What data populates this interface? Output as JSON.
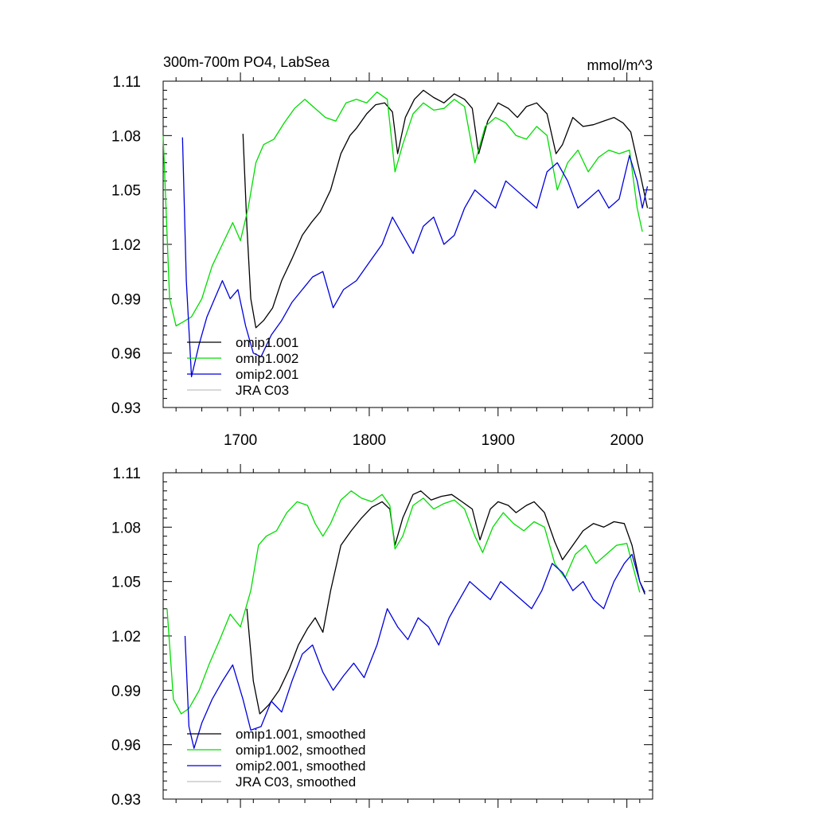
{
  "chart_data": [
    {
      "type": "line",
      "title": "300m-700m PO4, LabSea",
      "units": "mmol/m^3",
      "xlim": [
        1640,
        2020
      ],
      "ylim": [
        0.93,
        1.11
      ],
      "yticks": [
        "0.93",
        "0.96",
        "0.99",
        "1.02",
        "1.05",
        "1.08",
        "1.11"
      ],
      "xticks": [
        "1700",
        "1800",
        "1900",
        "2000"
      ],
      "legend_position": "bottom-left",
      "series": [
        {
          "name": "omip1.001",
          "color": "#000000",
          "x": [
            1702,
            1705,
            1708,
            1712,
            1718,
            1725,
            1732,
            1740,
            1748,
            1755,
            1762,
            1770,
            1778,
            1785,
            1790,
            1798,
            1805,
            1812,
            1818,
            1822,
            1828,
            1835,
            1842,
            1850,
            1858,
            1866,
            1874,
            1880,
            1885,
            1892,
            1900,
            1908,
            1915,
            1922,
            1930,
            1938,
            1945,
            1950,
            1958,
            1966,
            1974,
            1982,
            1990,
            1997,
            2003,
            2010,
            2016
          ],
          "values": [
            1.081,
            1.03,
            0.99,
            0.974,
            0.978,
            0.985,
            1.0,
            1.012,
            1.025,
            1.032,
            1.038,
            1.05,
            1.07,
            1.08,
            1.084,
            1.092,
            1.097,
            1.098,
            1.093,
            1.07,
            1.09,
            1.1,
            1.105,
            1.101,
            1.098,
            1.103,
            1.1,
            1.095,
            1.07,
            1.088,
            1.098,
            1.095,
            1.09,
            1.096,
            1.098,
            1.092,
            1.07,
            1.075,
            1.09,
            1.085,
            1.086,
            1.088,
            1.09,
            1.087,
            1.082,
            1.06,
            1.04
          ]
        },
        {
          "name": "omip1.002",
          "color": "#00dd00",
          "x": [
            1640,
            1645,
            1650,
            1655,
            1662,
            1670,
            1678,
            1686,
            1694,
            1700,
            1706,
            1712,
            1718,
            1726,
            1734,
            1742,
            1750,
            1758,
            1766,
            1774,
            1782,
            1790,
            1798,
            1806,
            1814,
            1820,
            1826,
            1834,
            1842,
            1850,
            1858,
            1866,
            1874,
            1882,
            1890,
            1898,
            1906,
            1914,
            1922,
            1930,
            1938,
            1946,
            1954,
            1962,
            1970,
            1978,
            1986,
            1994,
            2002,
            2008,
            2012
          ],
          "values": [
            1.08,
            0.99,
            0.975,
            0.977,
            0.98,
            0.99,
            1.008,
            1.02,
            1.032,
            1.022,
            1.04,
            1.065,
            1.075,
            1.078,
            1.087,
            1.095,
            1.1,
            1.095,
            1.09,
            1.088,
            1.098,
            1.1,
            1.098,
            1.104,
            1.1,
            1.06,
            1.075,
            1.092,
            1.098,
            1.094,
            1.095,
            1.1,
            1.096,
            1.065,
            1.085,
            1.09,
            1.087,
            1.08,
            1.078,
            1.085,
            1.08,
            1.05,
            1.065,
            1.072,
            1.06,
            1.068,
            1.072,
            1.07,
            1.072,
            1.04,
            1.027
          ]
        },
        {
          "name": "omip2.001",
          "color": "#0000dd",
          "x": [
            1655,
            1658,
            1662,
            1668,
            1674,
            1680,
            1686,
            1692,
            1698,
            1704,
            1710,
            1716,
            1724,
            1732,
            1740,
            1748,
            1756,
            1764,
            1772,
            1780,
            1790,
            1800,
            1810,
            1818,
            1826,
            1834,
            1842,
            1850,
            1858,
            1866,
            1874,
            1882,
            1890,
            1898,
            1906,
            1914,
            1922,
            1930,
            1938,
            1946,
            1954,
            1962,
            1970,
            1978,
            1986,
            1994,
            2002,
            2008,
            2012,
            2016
          ],
          "values": [
            1.079,
            1.0,
            0.947,
            0.965,
            0.98,
            0.99,
            1.0,
            0.99,
            0.995,
            0.975,
            0.96,
            0.958,
            0.97,
            0.978,
            0.988,
            0.995,
            1.002,
            1.005,
            0.985,
            0.995,
            1.0,
            1.01,
            1.02,
            1.035,
            1.025,
            1.015,
            1.03,
            1.035,
            1.02,
            1.025,
            1.04,
            1.05,
            1.045,
            1.04,
            1.055,
            1.05,
            1.045,
            1.04,
            1.06,
            1.065,
            1.055,
            1.04,
            1.045,
            1.05,
            1.04,
            1.045,
            1.069,
            1.055,
            1.04,
            1.052
          ]
        },
        {
          "name": "JRA C03",
          "color": "#c0c0c0",
          "x": [],
          "values": []
        }
      ]
    },
    {
      "type": "line",
      "xlim": [
        1640,
        2020
      ],
      "ylim": [
        0.93,
        1.11
      ],
      "yticks": [
        "0.93",
        "0.96",
        "0.99",
        "1.02",
        "1.05",
        "1.08",
        "1.11"
      ],
      "legend_position": "bottom-left",
      "series": [
        {
          "name": "omip1.001, smoothed",
          "color": "#000000",
          "x": [
            1705,
            1710,
            1715,
            1722,
            1730,
            1738,
            1745,
            1752,
            1758,
            1764,
            1770,
            1778,
            1786,
            1794,
            1802,
            1810,
            1816,
            1820,
            1826,
            1834,
            1840,
            1848,
            1856,
            1864,
            1872,
            1880,
            1886,
            1894,
            1900,
            1908,
            1914,
            1922,
            1928,
            1936,
            1944,
            1950,
            1958,
            1966,
            1974,
            1982,
            1990,
            1998,
            2004,
            2010,
            2014
          ],
          "values": [
            1.035,
            0.995,
            0.977,
            0.982,
            0.99,
            1.002,
            1.015,
            1.024,
            1.03,
            1.022,
            1.045,
            1.07,
            1.078,
            1.085,
            1.091,
            1.094,
            1.09,
            1.07,
            1.085,
            1.098,
            1.1,
            1.095,
            1.097,
            1.098,
            1.094,
            1.09,
            1.073,
            1.09,
            1.094,
            1.092,
            1.088,
            1.092,
            1.094,
            1.088,
            1.072,
            1.062,
            1.07,
            1.078,
            1.082,
            1.08,
            1.083,
            1.082,
            1.07,
            1.05,
            1.043
          ]
        },
        {
          "name": "omip1.002, smoothed",
          "color": "#00dd00",
          "x": [
            1643,
            1648,
            1654,
            1660,
            1668,
            1676,
            1684,
            1692,
            1700,
            1708,
            1714,
            1720,
            1728,
            1736,
            1744,
            1752,
            1758,
            1764,
            1770,
            1778,
            1786,
            1794,
            1802,
            1810,
            1816,
            1820,
            1826,
            1834,
            1842,
            1850,
            1858,
            1866,
            1874,
            1882,
            1888,
            1896,
            1904,
            1912,
            1920,
            1928,
            1936,
            1944,
            1952,
            1960,
            1968,
            1976,
            1984,
            1992,
            2000,
            2006,
            2010
          ],
          "values": [
            1.035,
            0.985,
            0.977,
            0.98,
            0.99,
            1.005,
            1.018,
            1.032,
            1.025,
            1.045,
            1.07,
            1.075,
            1.078,
            1.088,
            1.094,
            1.092,
            1.082,
            1.075,
            1.082,
            1.095,
            1.1,
            1.096,
            1.094,
            1.098,
            1.092,
            1.068,
            1.075,
            1.092,
            1.096,
            1.09,
            1.093,
            1.095,
            1.09,
            1.075,
            1.066,
            1.08,
            1.088,
            1.082,
            1.078,
            1.083,
            1.08,
            1.06,
            1.052,
            1.065,
            1.07,
            1.06,
            1.065,
            1.07,
            1.071,
            1.055,
            1.044
          ]
        },
        {
          "name": "omip2.001, smoothed",
          "color": "#0000dd",
          "x": [
            1657,
            1660,
            1664,
            1670,
            1678,
            1686,
            1694,
            1702,
            1708,
            1716,
            1724,
            1732,
            1740,
            1748,
            1756,
            1764,
            1772,
            1780,
            1788,
            1796,
            1806,
            1814,
            1822,
            1830,
            1838,
            1846,
            1854,
            1862,
            1870,
            1878,
            1886,
            1894,
            1902,
            1910,
            1918,
            1926,
            1934,
            1942,
            1950,
            1958,
            1966,
            1974,
            1982,
            1990,
            1998,
            2004,
            2010,
            2014
          ],
          "values": [
            1.02,
            0.97,
            0.958,
            0.972,
            0.985,
            0.995,
            1.004,
            0.985,
            0.968,
            0.97,
            0.984,
            0.978,
            0.995,
            1.01,
            1.015,
            1.0,
            0.99,
            0.998,
            1.005,
            0.997,
            1.015,
            1.035,
            1.025,
            1.018,
            1.03,
            1.025,
            1.015,
            1.03,
            1.04,
            1.05,
            1.045,
            1.04,
            1.05,
            1.045,
            1.04,
            1.035,
            1.045,
            1.06,
            1.055,
            1.045,
            1.05,
            1.04,
            1.035,
            1.05,
            1.06,
            1.065,
            1.05,
            1.044
          ]
        },
        {
          "name": "JRA C03, smoothed",
          "color": "#c0c0c0",
          "x": [],
          "values": []
        }
      ]
    }
  ]
}
